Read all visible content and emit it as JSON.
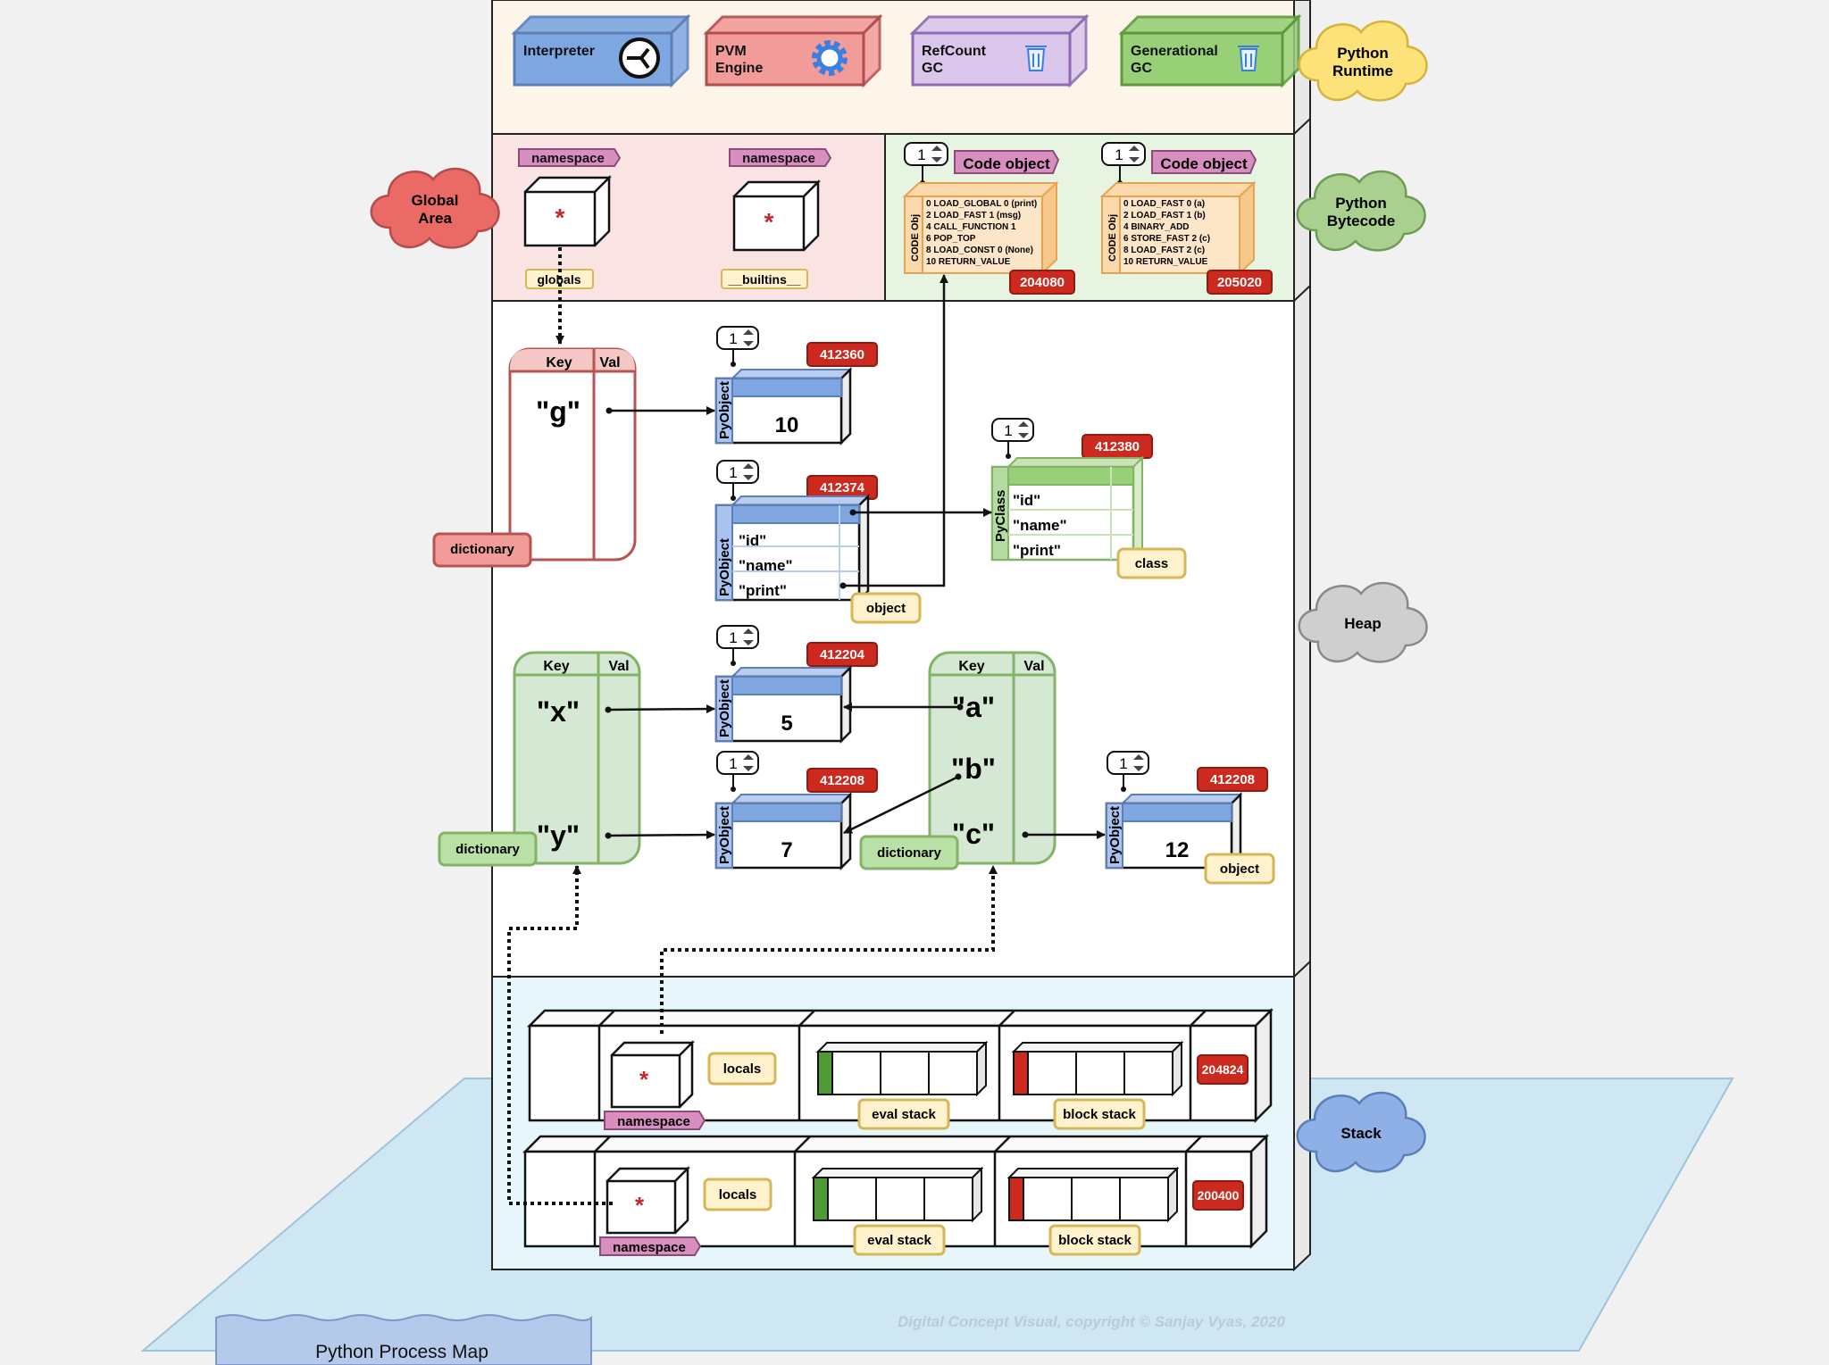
{
  "runtime": {
    "components": [
      {
        "label_1": "Interpreter",
        "label_2": "",
        "icon": "split-arrow-icon"
      },
      {
        "label_1": "PVM",
        "label_2": "Engine",
        "icon": "gear-icon"
      },
      {
        "label_1": "RefCount",
        "label_2": "GC",
        "icon": "trash-icon"
      },
      {
        "label_1": "Generational",
        "label_2": "GC",
        "icon": "trash-icon"
      }
    ],
    "cloud_1": "Python",
    "cloud_2": "Runtime"
  },
  "global_area": {
    "cloud_1": "Global",
    "cloud_2": "Area",
    "namespace_label": "namespace",
    "star": "*",
    "globals_label": "globals",
    "builtins_label": "__builtins__"
  },
  "bytecode": {
    "cloud_1": "Python",
    "cloud_2": "Bytecode",
    "code_objects": [
      {
        "title": "Code object",
        "count": "1",
        "side_label": "CODE Obj",
        "address": "204080",
        "lines": [
          "0 LOAD_GLOBAL   0 (print)",
          "2 LOAD_FAST        1 (msg)",
          "4 CALL_FUNCTION 1",
          "6 POP_TOP",
          "8 LOAD_CONST    0 (None)",
          "10 RETURN_VALUE"
        ]
      },
      {
        "title": "Code object",
        "count": "1",
        "side_label": "CODE Obj",
        "address": "205020",
        "lines": [
          "0 LOAD_FAST  0 (a)",
          "2 LOAD_FAST  1 (b)",
          "4 BINARY_ADD",
          "6 STORE_FAST 2 (c)",
          "8 LOAD_FAST  2 (c)",
          "10 RETURN_VALUE"
        ]
      }
    ]
  },
  "heap": {
    "cloud": "Heap",
    "key_header": "Key",
    "val_header": "Val",
    "dictionary_label": "dictionary",
    "global_dict_key": "\"g\"",
    "pyobject_label": "PyObject",
    "pyclass_label": "PyClass",
    "obj_g": {
      "count": "1",
      "address": "412360",
      "value": "10"
    },
    "instance": {
      "count": "1",
      "address": "412374",
      "fields": [
        "\"id\"",
        "\"name\"",
        "\"print\""
      ],
      "tag": "object"
    },
    "cls": {
      "count": "1",
      "address": "412380",
      "fields": [
        "\"id\"",
        "\"name\"",
        "\"print\""
      ],
      "tag": "class"
    },
    "frame_dict_1": {
      "keys": [
        "\"x\"",
        "\"y\""
      ]
    },
    "frame_dict_2": {
      "keys": [
        "\"a\"",
        "\"b\"",
        "\"c\""
      ]
    },
    "obj_x": {
      "count": "1",
      "address": "412204",
      "value": "5"
    },
    "obj_y": {
      "count": "1",
      "address": "412208",
      "value": "7"
    },
    "obj_c": {
      "count": "1",
      "address": "412208",
      "value": "12",
      "tag": "object"
    }
  },
  "stack": {
    "cloud": "Stack",
    "frames": [
      {
        "locals_label": "locals",
        "namespace_label": "namespace",
        "star": "*",
        "eval_label": "eval stack",
        "block_label": "block stack",
        "address": "204824"
      },
      {
        "locals_label": "locals",
        "namespace_label": "namespace",
        "star": "*",
        "eval_label": "eval stack",
        "block_label": "block stack",
        "address": "200400"
      }
    ]
  },
  "footer": {
    "copyright": "Digital Concept Visual, copyright © Sanjay Vyas, 2020",
    "banner": "Python Process Map"
  },
  "colors": {
    "blue_fill": "#7ea6e0",
    "red_fill": "#f19c99",
    "purple_fill": "#d9c6ea",
    "green_fill": "#97d077",
    "cloud_yellow": "#fde27a",
    "cloud_red": "#ea6b66",
    "cloud_green": "#a9d08e",
    "cloud_gray": "#cfcfcf",
    "cloud_blue": "#8fb0e6",
    "address_red": "#cc2a1e",
    "tag_yellow": "#fff2cc"
  }
}
